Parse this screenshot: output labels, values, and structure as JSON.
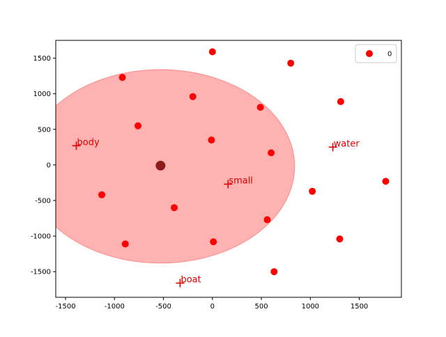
{
  "chart_data": {
    "type": "scatter",
    "xlim": [
      -1600,
      1930
    ],
    "ylim": [
      -1860,
      1750
    ],
    "xticks": [
      -1500,
      -1000,
      -500,
      0,
      500,
      1000,
      1500
    ],
    "yticks": [
      -1500,
      -1000,
      -500,
      0,
      500,
      1000,
      1500
    ],
    "grid": false,
    "legend": {
      "placement": "top-right",
      "entries": [
        {
          "label": "0",
          "color": "#ff0000"
        }
      ]
    },
    "series": [
      {
        "name": "0",
        "color": "#ff0000",
        "points": [
          {
            "x": 0,
            "y": 1590
          },
          {
            "x": 800,
            "y": 1430
          },
          {
            "x": -920,
            "y": 1230
          },
          {
            "x": -200,
            "y": 960
          },
          {
            "x": 1310,
            "y": 890
          },
          {
            "x": 490,
            "y": 810
          },
          {
            "x": -760,
            "y": 550
          },
          {
            "x": -10,
            "y": 350
          },
          {
            "x": 600,
            "y": 170
          },
          {
            "x": 1770,
            "y": -230
          },
          {
            "x": 1020,
            "y": -370
          },
          {
            "x": -1130,
            "y": -420
          },
          {
            "x": -390,
            "y": -600
          },
          {
            "x": 560,
            "y": -770
          },
          {
            "x": -890,
            "y": -1110
          },
          {
            "x": 10,
            "y": -1080
          },
          {
            "x": 1300,
            "y": -1040
          },
          {
            "x": 630,
            "y": -1500
          }
        ]
      }
    ],
    "centroid": {
      "x": -530,
      "y": -10,
      "color": "#7a0000"
    },
    "ellipse": {
      "cx": -530,
      "cy": -20,
      "rx": 1370,
      "ry": 1360,
      "color": "#ff0000",
      "opacity": 0.3
    },
    "word_markers": [
      {
        "label": "body",
        "x": -1390,
        "y": 270
      },
      {
        "label": "water",
        "x": 1230,
        "y": 250
      },
      {
        "label": "small",
        "x": 160,
        "y": -270
      },
      {
        "label": "boat",
        "x": -330,
        "y": -1660
      }
    ]
  }
}
